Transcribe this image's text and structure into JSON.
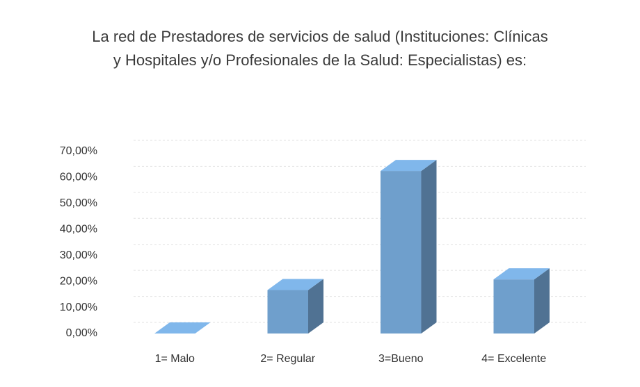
{
  "chart_data": {
    "type": "bar3d",
    "title": "La red de Prestadores de servicios de salud (Instituciones: Clínicas y Hospitales y/o Profesionales de la Salud: Especialistas) es:",
    "categories": [
      "1= Malo",
      "2= Regular",
      "3=Bueno",
      "4= Excelente"
    ],
    "values": [
      0,
      16.7,
      62.5,
      20.8
    ],
    "color": "#6f9fcc",
    "ylim": [
      0,
      70
    ],
    "yticks": [
      {
        "value": 0,
        "label": "0,00%"
      },
      {
        "value": 10,
        "label": "10,00%"
      },
      {
        "value": 20,
        "label": "20,00%"
      },
      {
        "value": 30,
        "label": "30,00%"
      },
      {
        "value": 40,
        "label": "40,00%"
      },
      {
        "value": 50,
        "label": "50,00%"
      },
      {
        "value": 60,
        "label": "60,00%"
      },
      {
        "value": 70,
        "label": "70,00%"
      }
    ],
    "grid": true
  }
}
